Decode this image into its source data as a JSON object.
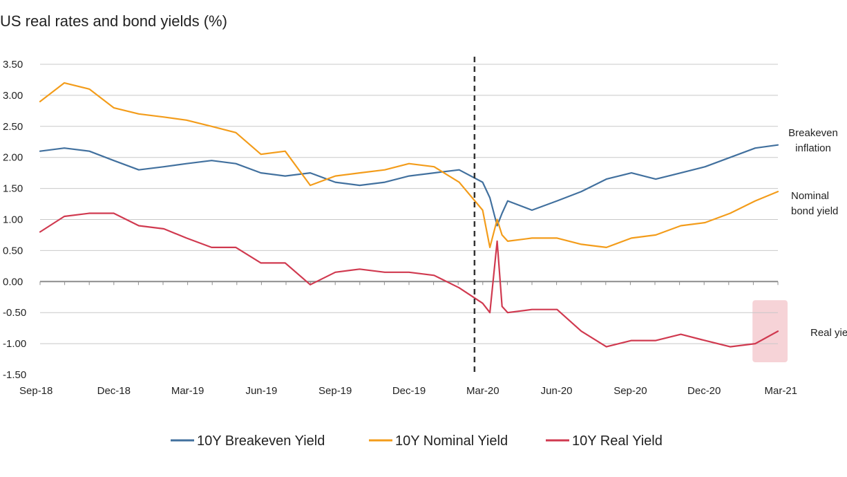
{
  "chart_data": {
    "type": "line",
    "title": "US real rates and bond yields (%)",
    "xlabel": "",
    "ylabel": "",
    "x_range": [
      "2018-09",
      "2021-03"
    ],
    "ylim": [
      -1.5,
      3.5
    ],
    "y_ticks": [
      "3.50",
      "3.00",
      "2.50",
      "2.00",
      "1.50",
      "1.00",
      "0.50",
      "0.00",
      "-0.50",
      "-1.00",
      "-1.50"
    ],
    "x_ticks": [
      "Sep-18",
      "Dec-18",
      "Mar-19",
      "Jun-19",
      "Sep-19",
      "Dec-19",
      "Mar-20",
      "Jun-20",
      "Sep-20",
      "Dec-20",
      "Mar-21"
    ],
    "grid": true,
    "legend_position": "bottom",
    "vertical_marker_x": "2020-02-20",
    "series": [
      {
        "name": "10Y Breakeven Yield",
        "color": "#41709e",
        "x": [
          "2018-09",
          "2018-10",
          "2018-11",
          "2018-12",
          "2019-01",
          "2019-02",
          "2019-03",
          "2019-04",
          "2019-05",
          "2019-06",
          "2019-07",
          "2019-08",
          "2019-09",
          "2019-10",
          "2019-11",
          "2019-12",
          "2020-01",
          "2020-02",
          "2020-03-01",
          "2020-03-10",
          "2020-03-19",
          "2020-03-25",
          "2020-04",
          "2020-05",
          "2020-06",
          "2020-07",
          "2020-08",
          "2020-09",
          "2020-10",
          "2020-11",
          "2020-12",
          "2021-01",
          "2021-02",
          "2021-03"
        ],
        "values": [
          2.1,
          2.15,
          2.1,
          1.95,
          1.8,
          1.85,
          1.9,
          1.95,
          1.9,
          1.75,
          1.7,
          1.75,
          1.6,
          1.55,
          1.6,
          1.7,
          1.75,
          1.8,
          1.6,
          1.35,
          0.9,
          1.1,
          1.3,
          1.15,
          1.3,
          1.45,
          1.65,
          1.75,
          1.65,
          1.75,
          1.85,
          2.0,
          2.15,
          2.2
        ]
      },
      {
        "name": "10Y Nominal Yield",
        "color": "#f39c1a",
        "x": [
          "2018-09",
          "2018-10",
          "2018-11",
          "2018-12",
          "2019-01",
          "2019-02",
          "2019-03",
          "2019-04",
          "2019-05",
          "2019-06",
          "2019-07",
          "2019-08",
          "2019-09",
          "2019-10",
          "2019-11",
          "2019-12",
          "2020-01",
          "2020-02",
          "2020-03-01",
          "2020-03-10",
          "2020-03-19",
          "2020-03-25",
          "2020-04",
          "2020-05",
          "2020-06",
          "2020-07",
          "2020-08",
          "2020-09",
          "2020-10",
          "2020-11",
          "2020-12",
          "2021-01",
          "2021-02",
          "2021-03"
        ],
        "values": [
          2.9,
          3.2,
          3.1,
          2.8,
          2.7,
          2.65,
          2.6,
          2.5,
          2.4,
          2.05,
          2.1,
          1.55,
          1.7,
          1.75,
          1.8,
          1.9,
          1.85,
          1.6,
          1.15,
          0.55,
          1.0,
          0.75,
          0.65,
          0.7,
          0.7,
          0.6,
          0.55,
          0.7,
          0.75,
          0.9,
          0.95,
          1.1,
          1.3,
          1.45
        ]
      },
      {
        "name": "10Y Real Yield",
        "color": "#d0394f",
        "x": [
          "2018-09",
          "2018-10",
          "2018-11",
          "2018-12",
          "2019-01",
          "2019-02",
          "2019-03",
          "2019-04",
          "2019-05",
          "2019-06",
          "2019-07",
          "2019-08",
          "2019-09",
          "2019-10",
          "2019-11",
          "2019-12",
          "2020-01",
          "2020-02",
          "2020-03-01",
          "2020-03-10",
          "2020-03-19",
          "2020-03-25",
          "2020-04",
          "2020-05",
          "2020-06",
          "2020-07",
          "2020-08",
          "2020-09",
          "2020-10",
          "2020-11",
          "2020-12",
          "2021-01",
          "2021-02",
          "2021-03"
        ],
        "values": [
          0.8,
          1.05,
          1.1,
          1.1,
          0.9,
          0.85,
          0.7,
          0.55,
          0.55,
          0.3,
          0.3,
          -0.05,
          0.15,
          0.2,
          0.15,
          0.15,
          0.1,
          -0.1,
          -0.35,
          -0.5,
          0.65,
          -0.4,
          -0.5,
          -0.45,
          -0.45,
          -0.8,
          -1.05,
          -0.95,
          -0.95,
          -0.85,
          -0.95,
          -1.05,
          -1.0,
          -0.8
        ]
      }
    ],
    "annotations": [
      {
        "lines": [
          "Breakeven",
          "inflation"
        ],
        "series": "10Y Breakeven Yield"
      },
      {
        "lines": [
          "Nominal",
          "bond yield"
        ],
        "series": "10Y Nominal Yield"
      },
      {
        "lines": [
          "Real yield"
        ],
        "series": "10Y Real Yield"
      }
    ],
    "highlight": {
      "x_range": [
        "2021-02-01",
        "2021-03-01"
      ],
      "y_range": [
        -1.3,
        -0.3
      ],
      "color": "#f6d3d7"
    }
  }
}
